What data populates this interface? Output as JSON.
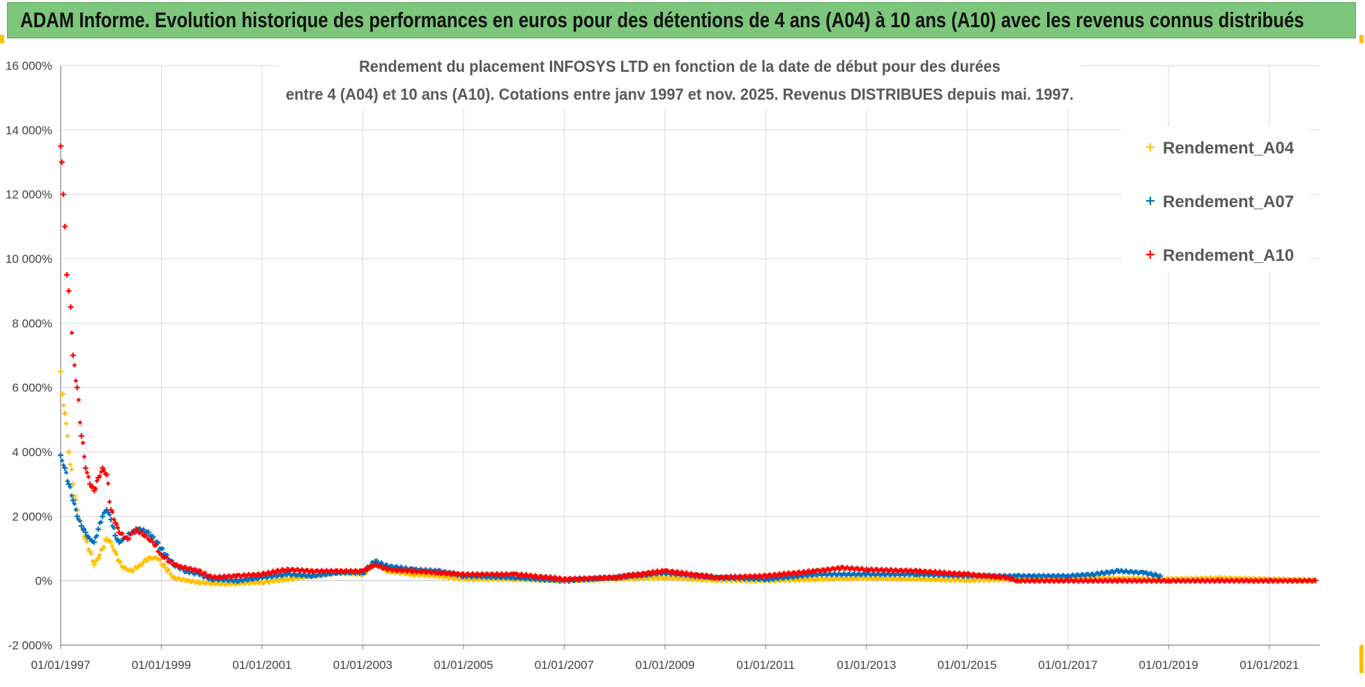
{
  "banner": {
    "title": "ADAM Informe. Evolution historique des performances en euros pour des détentions de 4 ans (A04) à 10 ans (A10) avec les revenus connus distribués"
  },
  "colors": {
    "banner_bg": "#7cc77c",
    "A04": "#ffc000",
    "A07": "#0070c0",
    "A10": "#ff0000",
    "grid": "#d9d9d9"
  },
  "chart_data": {
    "type": "scatter",
    "title_lines": [
      "Rendement du placement INFOSYS LTD en fonction de la date de début pour des durées",
      "entre 4 (A04) et 10 ans (A10). Cotations entre janv 1997 et nov. 2025. Revenus DISTRIBUES depuis mai. 1997."
    ],
    "xlabel": "",
    "ylabel": "",
    "ylim": [
      -2000,
      16000
    ],
    "yticks": [
      -2000,
      0,
      2000,
      4000,
      6000,
      8000,
      10000,
      12000,
      14000,
      16000
    ],
    "ytick_labels": [
      "-2 000%",
      "0%",
      "2 000%",
      "4 000%",
      "6 000%",
      "8 000%",
      "10 000%",
      "12 000%",
      "14 000%",
      "16 000%"
    ],
    "xlim": [
      "1997-01-01",
      "2022-01-01"
    ],
    "xticks": [
      "1997-01-01",
      "1999-01-01",
      "2001-01-01",
      "2003-01-01",
      "2005-01-01",
      "2007-01-01",
      "2009-01-01",
      "2011-01-01",
      "2013-01-01",
      "2015-01-01",
      "2017-01-01",
      "2019-01-01",
      "2021-01-01"
    ],
    "xtick_labels": [
      "01/01/1997",
      "01/01/1999",
      "01/01/2001",
      "01/01/2003",
      "01/01/2005",
      "01/01/2007",
      "01/01/2009",
      "01/01/2011",
      "01/01/2013",
      "01/01/2015",
      "01/01/2017",
      "01/01/2019",
      "01/01/2021"
    ],
    "grid": true,
    "legend_position": "top-right",
    "series": [
      {
        "name": "Rendement_A04",
        "color": "#ffc000",
        "x": [
          "1997-01-01",
          "1997-01-15",
          "1997-02-01",
          "1997-03-01",
          "1997-04-01",
          "1997-05-01",
          "1997-06-01",
          "1997-07-01",
          "1997-08-01",
          "1997-09-01",
          "1997-10-01",
          "1997-11-01",
          "1997-12-01",
          "1998-01-01",
          "1998-02-01",
          "1998-03-01",
          "1998-04-01",
          "1998-06-01",
          "1998-08-01",
          "1998-10-01",
          "1998-12-01",
          "1999-02-01",
          "1999-04-01",
          "1999-07-01",
          "1999-10-01",
          "2000-01-01",
          "2000-04-01",
          "2000-07-01",
          "2001-01-01",
          "2001-07-01",
          "2002-01-01",
          "2002-07-01",
          "2003-01-01",
          "2003-04-01",
          "2003-07-01",
          "2004-01-01",
          "2004-07-01",
          "2005-01-01",
          "2006-01-01",
          "2007-01-01",
          "2008-01-01",
          "2009-01-01",
          "2010-01-01",
          "2011-01-01",
          "2012-01-01",
          "2013-01-01",
          "2014-01-01",
          "2015-01-01",
          "2016-01-01",
          "2017-01-01",
          "2018-01-01",
          "2019-01-01",
          "2020-01-01",
          "2021-01-01",
          "2021-12-01"
        ],
        "y": [
          6500,
          5800,
          5200,
          4000,
          3000,
          2200,
          1700,
          1300,
          900,
          500,
          700,
          1000,
          1300,
          1200,
          900,
          600,
          400,
          300,
          500,
          700,
          700,
          400,
          100,
          0,
          -50,
          -80,
          -100,
          -80,
          -50,
          50,
          150,
          250,
          200,
          550,
          300,
          200,
          150,
          50,
          50,
          0,
          50,
          100,
          20,
          0,
          50,
          80,
          50,
          20,
          50,
          100,
          80,
          50,
          80,
          50,
          20
        ]
      },
      {
        "name": "Rendement_A07",
        "color": "#0070c0",
        "x": [
          "1997-01-01",
          "1997-02-01",
          "1997-03-01",
          "1997-04-01",
          "1997-05-01",
          "1997-06-01",
          "1997-07-01",
          "1997-08-01",
          "1997-09-01",
          "1997-10-01",
          "1997-11-01",
          "1997-12-01",
          "1998-01-01",
          "1998-02-01",
          "1998-03-01",
          "1998-04-01",
          "1998-06-01",
          "1998-08-01",
          "1998-10-01",
          "1998-12-01",
          "1999-02-01",
          "1999-04-01",
          "1999-07-01",
          "1999-10-01",
          "2000-01-01",
          "2000-07-01",
          "2001-01-01",
          "2001-07-01",
          "2002-01-01",
          "2002-07-01",
          "2003-01-01",
          "2003-04-01",
          "2003-07-01",
          "2004-01-01",
          "2004-07-01",
          "2005-01-01",
          "2006-01-01",
          "2007-01-01",
          "2008-01-01",
          "2009-01-01",
          "2010-01-01",
          "2011-01-01",
          "2012-01-01",
          "2013-01-01",
          "2014-01-01",
          "2015-01-01",
          "2016-01-01",
          "2017-01-01",
          "2017-07-01",
          "2018-01-01",
          "2018-07-01",
          "2018-11-01"
        ],
        "y": [
          3900,
          3500,
          3000,
          2500,
          2000,
          1700,
          1500,
          1300,
          1200,
          1600,
          2000,
          2200,
          1900,
          1400,
          1200,
          1300,
          1500,
          1600,
          1500,
          1200,
          800,
          500,
          300,
          200,
          50,
          0,
          100,
          200,
          150,
          250,
          250,
          600,
          450,
          350,
          300,
          150,
          100,
          0,
          100,
          250,
          100,
          50,
          200,
          200,
          200,
          150,
          150,
          150,
          200,
          300,
          250,
          150
        ]
      },
      {
        "name": "Rendement_A10",
        "color": "#ff0000",
        "x": [
          "1997-01-01",
          "1997-01-10",
          "1997-01-20",
          "1997-02-01",
          "1997-02-15",
          "1997-03-01",
          "1997-03-15",
          "1997-04-01",
          "1997-05-01",
          "1997-06-01",
          "1997-07-01",
          "1997-08-01",
          "1997-09-01",
          "1997-10-01",
          "1997-11-01",
          "1997-12-01",
          "1998-01-01",
          "1998-02-01",
          "1998-03-01",
          "1998-05-01",
          "1998-07-01",
          "1998-09-01",
          "1998-11-01",
          "1999-01-01",
          "1999-03-01",
          "1999-05-01",
          "1999-07-01",
          "1999-10-01",
          "2000-01-01",
          "2000-07-01",
          "2001-01-01",
          "2001-07-01",
          "2002-01-01",
          "2002-07-01",
          "2003-01-01",
          "2003-04-01",
          "2003-07-01",
          "2004-01-01",
          "2004-07-01",
          "2005-01-01",
          "2006-01-01",
          "2007-01-01",
          "2008-01-01",
          "2009-01-01",
          "2010-01-01",
          "2011-01-01",
          "2012-01-01",
          "2012-07-01",
          "2013-01-01",
          "2014-01-01",
          "2015-01-01",
          "2015-10-01",
          "2016-01-01",
          "2017-01-01",
          "2018-01-01",
          "2019-01-01",
          "2020-01-01",
          "2021-01-01",
          "2021-12-01"
        ],
        "y": [
          13500,
          13000,
          12000,
          11000,
          9500,
          9000,
          8500,
          7000,
          6000,
          4500,
          3500,
          3000,
          2800,
          3200,
          3500,
          3300,
          2200,
          1800,
          1500,
          1300,
          1600,
          1400,
          1200,
          800,
          600,
          450,
          400,
          300,
          100,
          150,
          200,
          350,
          300,
          300,
          300,
          500,
          350,
          300,
          250,
          200,
          200,
          50,
          100,
          300,
          100,
          150,
          300,
          400,
          350,
          300,
          200,
          100,
          0,
          0,
          0,
          0,
          0,
          0,
          0
        ]
      }
    ]
  }
}
